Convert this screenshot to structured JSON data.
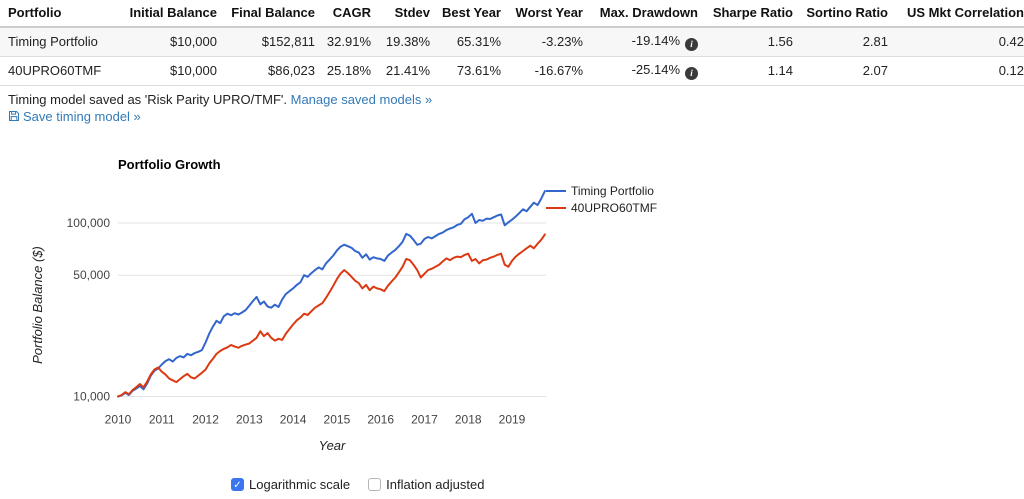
{
  "table": {
    "columns": [
      "Portfolio",
      "Initial Balance",
      "Final Balance",
      "CAGR",
      "Stdev",
      "Best Year",
      "Worst Year",
      "Max. Drawdown",
      "Sharpe Ratio",
      "Sortino Ratio",
      "US Mkt Correlation"
    ],
    "rows": [
      {
        "cells": [
          "Timing Portfolio",
          "$10,000",
          "$152,811",
          "32.91%",
          "19.38%",
          "65.31%",
          "-3.23%",
          "-19.14%",
          "1.56",
          "2.81",
          "0.42"
        ],
        "info_cell": 7
      },
      {
        "cells": [
          "40UPRO60TMF",
          "$10,000",
          "$86,023",
          "25.18%",
          "21.41%",
          "73.61%",
          "-16.67%",
          "-25.14%",
          "1.14",
          "2.07",
          "0.12"
        ],
        "info_cell": 7
      }
    ]
  },
  "notes": {
    "saved_text": "Timing model saved as 'Risk Parity UPRO/TMF'. ",
    "manage_link": "Manage saved models »",
    "save_link": "Save timing model »"
  },
  "chart_data": {
    "type": "line",
    "title": "Portfolio Growth",
    "xlabel": "Year",
    "ylabel": "Portfolio Balance ($)",
    "log_scale": true,
    "legend_position": "top-right",
    "x_start_year": 2010,
    "points_per_year": 12,
    "x_ticks": [
      2010,
      2011,
      2012,
      2013,
      2014,
      2015,
      2016,
      2017,
      2018,
      2019
    ],
    "y_ticks": [
      {
        "value": 10000,
        "label": "10,000"
      },
      {
        "value": 50000,
        "label": "50,000"
      },
      {
        "value": 100000,
        "label": "100,000"
      }
    ],
    "series": [
      {
        "name": "Timing Portfolio",
        "color": "#3366cc",
        "values_thousands": [
          10.0,
          10.15,
          10.5,
          10.2,
          10.8,
          11.1,
          11.5,
          11.0,
          11.9,
          13.2,
          14.1,
          14.5,
          15.3,
          16.0,
          16.4,
          15.9,
          16.7,
          17.1,
          16.8,
          17.6,
          17.3,
          17.8,
          18.1,
          18.5,
          20.5,
          23.0,
          25.3,
          27.3,
          26.5,
          29.0,
          30.0,
          29.4,
          30.2,
          29.7,
          30.5,
          31.5,
          33.4,
          35.5,
          37.5,
          34.0,
          35.3,
          33.0,
          32.5,
          33.8,
          32.8,
          36.3,
          38.9,
          40.5,
          42.0,
          44.0,
          45.5,
          50.0,
          49.0,
          51.4,
          53.5,
          55.5,
          54.0,
          58.5,
          61.5,
          65.0,
          69.4,
          73.0,
          75.0,
          73.5,
          72.0,
          69.0,
          67.5,
          63.0,
          66.0,
          61.5,
          63.5,
          62.5,
          62.0,
          60.5,
          65.0,
          67.5,
          70.0,
          73.5,
          78.0,
          86.5,
          84.5,
          80.0,
          74.9,
          76.0,
          81.0,
          83.0,
          81.5,
          84.0,
          86.5,
          88.0,
          91.0,
          93.0,
          94.5,
          97.5,
          99.0,
          105.0,
          108.0,
          113.0,
          100.0,
          104.0,
          103.0,
          106.0,
          105.5,
          108.0,
          110.5,
          112.0,
          97.0,
          101.0,
          104.5,
          109.0,
          114.0,
          120.0,
          117.0,
          124.0,
          131.0,
          127.0,
          138.0,
          152.8
        ]
      },
      {
        "name": "40UPRO60TMF",
        "color": "#dc3912",
        "values_thousands": [
          10.0,
          10.2,
          10.6,
          10.3,
          10.9,
          11.3,
          11.8,
          11.3,
          12.2,
          13.4,
          14.3,
          14.7,
          13.9,
          13.4,
          12.7,
          12.4,
          12.1,
          12.6,
          13.1,
          13.5,
          12.9,
          12.7,
          13.2,
          13.7,
          14.3,
          15.5,
          16.5,
          17.6,
          18.3,
          18.8,
          19.2,
          19.8,
          19.4,
          19.1,
          19.6,
          19.9,
          20.2,
          21.0,
          21.8,
          23.8,
          22.3,
          23.2,
          21.8,
          21.0,
          21.5,
          21.2,
          23.0,
          24.5,
          26.0,
          27.5,
          28.5,
          30.0,
          29.5,
          31.0,
          32.5,
          33.5,
          34.5,
          37.0,
          40.0,
          43.5,
          47.5,
          51.0,
          53.5,
          51.5,
          49.0,
          46.5,
          45.0,
          42.0,
          44.0,
          41.0,
          43.0,
          42.0,
          41.5,
          40.5,
          43.5,
          46.0,
          48.5,
          52.0,
          56.0,
          62.0,
          61.0,
          57.5,
          53.5,
          48.5,
          51.0,
          53.5,
          54.5,
          56.0,
          57.5,
          60.0,
          62.5,
          61.0,
          63.0,
          64.0,
          63.5,
          65.5,
          66.5,
          60.5,
          62.0,
          58.5,
          61.0,
          61.5,
          63.0,
          64.0,
          65.5,
          66.5,
          57.5,
          56.0,
          60.5,
          64.0,
          66.5,
          69.0,
          71.5,
          74.0,
          71.5,
          76.0,
          80.0,
          86.0
        ]
      }
    ]
  },
  "controls": {
    "checkboxes": [
      {
        "label": "Logarithmic scale",
        "checked": true
      },
      {
        "label": "Inflation adjusted",
        "checked": false
      }
    ]
  },
  "colors": {
    "link": "#337ab7",
    "line_blue": "#3366cc",
    "line_red": "#dc3912",
    "checkbox_on": "#3b76f0",
    "gridline": "#e3e3e3"
  }
}
